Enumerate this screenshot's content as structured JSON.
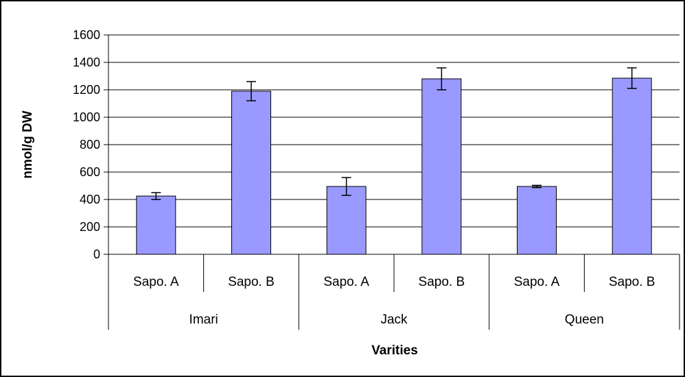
{
  "chart_data": {
    "type": "bar",
    "xlabel": "Varities",
    "ylabel": "nmol/g DW",
    "ylim": [
      0,
      1600
    ],
    "yticks": [
      0,
      200,
      400,
      600,
      800,
      1000,
      1200,
      1400,
      1600
    ],
    "grid": true,
    "groups": [
      {
        "name": "Imari",
        "bars": [
          {
            "label": "Sapo. A",
            "value": 425,
            "error": 25
          },
          {
            "label": "Sapo. B",
            "value": 1190,
            "error": 70
          }
        ]
      },
      {
        "name": "Jack",
        "bars": [
          {
            "label": "Sapo. A",
            "value": 495,
            "error": 65
          },
          {
            "label": "Sapo. B",
            "value": 1280,
            "error": 80
          }
        ]
      },
      {
        "name": "Queen",
        "bars": [
          {
            "label": "Sapo. A",
            "value": 495,
            "error": 8
          },
          {
            "label": "Sapo. B",
            "value": 1285,
            "error": 75
          }
        ]
      }
    ],
    "colors": {
      "bar_fill": "#9999ff",
      "bar_stroke": "#000000",
      "grid": "#000000",
      "background": "#ffffff"
    }
  }
}
